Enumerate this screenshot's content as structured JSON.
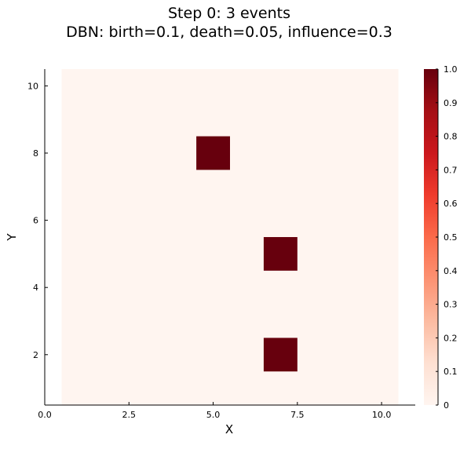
{
  "chart_data": {
    "type": "heatmap",
    "title_line1": "Step 0: 3 events",
    "title_line2": "DBN: birth=0.1, death=0.05, influence=0.3",
    "xlabel": "X",
    "ylabel": "Y",
    "xlim": [
      0,
      11
    ],
    "ylim": [
      0.5,
      10.5
    ],
    "x_ticks": [
      0.0,
      2.5,
      5.0,
      7.5,
      10.0
    ],
    "x_tick_labels": [
      "0.0",
      "2.5",
      "5.0",
      "7.5",
      "10.0"
    ],
    "y_ticks": [
      2,
      4,
      6,
      8,
      10
    ],
    "y_tick_labels": [
      "2",
      "4",
      "6",
      "8",
      "10"
    ],
    "grid_x": [
      1,
      10
    ],
    "grid_y": [
      1,
      10
    ],
    "background_value": 0,
    "cells": [
      {
        "x": 5,
        "y": 8,
        "value": 1.0
      },
      {
        "x": 7,
        "y": 5,
        "value": 1.0
      },
      {
        "x": 7,
        "y": 2,
        "value": 1.0
      }
    ],
    "colorbar": {
      "colormap": "Reds",
      "range": [
        0,
        1
      ],
      "ticks": [
        0,
        0.1,
        0.2,
        0.3,
        0.4,
        0.5,
        0.6,
        0.7,
        0.8,
        0.9,
        1.0
      ],
      "tick_labels": [
        "0",
        "0.1",
        "0.2",
        "0.3",
        "0.4",
        "0.5",
        "0.6",
        "0.7",
        "0.8",
        "0.9",
        "1.0"
      ],
      "low_color": "#fff5f0",
      "high_color": "#67000d"
    }
  }
}
